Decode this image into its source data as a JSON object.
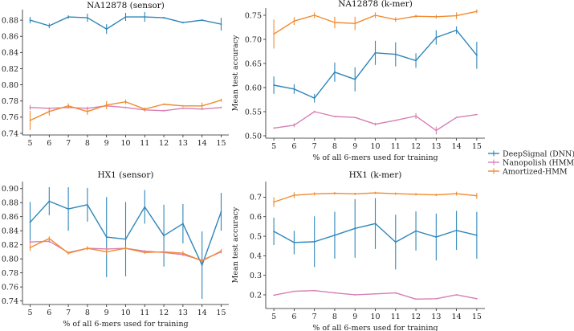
{
  "legend": {
    "entries": [
      {
        "name": "DeepSignal (DNN)",
        "color": "#2e86b9"
      },
      {
        "name": "Nanopolish (HMM)",
        "color": "#d67fb5"
      },
      {
        "name": "Amortized-HMM",
        "color": "#f28a2f"
      }
    ],
    "placement": "right-center"
  },
  "chart_data": [
    {
      "type": "line",
      "title": "NA12878 (sensor)",
      "xlabel": "",
      "ylabel": "Mean test accuracy",
      "x": [
        5,
        6,
        7,
        8,
        9,
        10,
        11,
        12,
        13,
        14,
        15
      ],
      "xlim": [
        4.6,
        15.4
      ],
      "ylim": [
        0.738,
        0.893
      ],
      "yticks": [
        0.74,
        0.76,
        0.78,
        0.8,
        0.82,
        0.84,
        0.86,
        0.88
      ],
      "yformat": 2,
      "series": [
        {
          "name": "DeepSignal (DNN)",
          "color": "#2e86b9",
          "values": [
            0.88,
            0.873,
            0.884,
            0.883,
            0.869,
            0.884,
            0.884,
            0.883,
            0.877,
            0.88,
            0.875
          ],
          "errors": [
            0.004,
            0.003,
            0.002,
            0.005,
            0.006,
            0.005,
            0.006,
            0.001,
            0.001,
            0.001,
            0.008
          ]
        },
        {
          "name": "Nanopolish (HMM)",
          "color": "#d67fb5",
          "values": [
            0.772,
            0.771,
            0.772,
            0.771,
            0.774,
            0.772,
            0.769,
            0.768,
            0.771,
            0.77,
            0.772
          ],
          "errors": [
            0.003,
            0.001,
            0.001,
            0.002,
            0.001,
            0.001,
            0.002,
            0.001,
            0.001,
            0.001,
            0.001
          ]
        },
        {
          "name": "Amortized-HMM",
          "color": "#f28a2f",
          "values": [
            0.756,
            0.767,
            0.774,
            0.767,
            0.775,
            0.779,
            0.77,
            0.776,
            0.774,
            0.774,
            0.781
          ],
          "errors": [
            0.012,
            0.005,
            0.003,
            0.004,
            0.005,
            0.003,
            0.002,
            0.001,
            0.001,
            0.004,
            0.002
          ]
        }
      ]
    },
    {
      "type": "line",
      "title": "NA12878 (k-mer)",
      "xlabel": "% of all 6-mers used for training",
      "ylabel": "Mean test accuracy",
      "x": [
        5,
        6,
        7,
        8,
        9,
        10,
        11,
        12,
        13,
        14,
        15
      ],
      "xlim": [
        4.6,
        15.4
      ],
      "ylim": [
        0.495,
        0.765
      ],
      "yticks": [
        0.5,
        0.55,
        0.6,
        0.65,
        0.7,
        0.75
      ],
      "yformat": 2,
      "series": [
        {
          "name": "DeepSignal (DNN)",
          "color": "#2e86b9",
          "values": [
            0.605,
            0.597,
            0.578,
            0.632,
            0.617,
            0.672,
            0.669,
            0.656,
            0.704,
            0.719,
            0.667
          ],
          "errors": [
            0.018,
            0.01,
            0.009,
            0.02,
            0.025,
            0.025,
            0.025,
            0.015,
            0.015,
            0.008,
            0.028
          ]
        },
        {
          "name": "Nanopolish (HMM)",
          "color": "#d67fb5",
          "values": [
            0.516,
            0.522,
            0.55,
            0.54,
            0.538,
            0.524,
            0.532,
            0.541,
            0.511,
            0.538,
            0.544
          ],
          "errors": [
            0.001,
            0.004,
            0.002,
            0.001,
            0.001,
            0.003,
            0.001,
            0.006,
            0.008,
            0.001,
            0.001
          ]
        },
        {
          "name": "Amortized-HMM",
          "color": "#f28a2f",
          "values": [
            0.711,
            0.738,
            0.75,
            0.735,
            0.733,
            0.75,
            0.741,
            0.748,
            0.747,
            0.749,
            0.758
          ],
          "errors": [
            0.03,
            0.008,
            0.006,
            0.012,
            0.014,
            0.006,
            0.005,
            0.003,
            0.004,
            0.007,
            0.004
          ]
        }
      ]
    },
    {
      "type": "line",
      "title": "HX1 (sensor)",
      "xlabel": "% of all 6-mers used for training",
      "ylabel": "Mean test accuracy",
      "x": [
        5,
        6,
        7,
        8,
        9,
        10,
        11,
        12,
        13,
        14,
        15
      ],
      "xlim": [
        4.6,
        15.4
      ],
      "ylim": [
        0.735,
        0.91
      ],
      "yticks": [
        0.74,
        0.76,
        0.78,
        0.8,
        0.82,
        0.84,
        0.86,
        0.88,
        0.9
      ],
      "yformat": 2,
      "series": [
        {
          "name": "DeepSignal (DNN)",
          "color": "#2e86b9",
          "values": [
            0.852,
            0.882,
            0.871,
            0.877,
            0.831,
            0.828,
            0.874,
            0.833,
            0.85,
            0.791,
            0.867
          ],
          "errors": [
            0.029,
            0.02,
            0.031,
            0.024,
            0.057,
            0.053,
            0.024,
            0.044,
            0.028,
            0.048,
            0.027
          ]
        },
        {
          "name": "Nanopolish (HMM)",
          "color": "#d67fb5",
          "values": [
            0.824,
            0.825,
            0.809,
            0.815,
            0.814,
            0.815,
            0.811,
            0.809,
            0.806,
            0.798,
            0.81
          ],
          "errors": [
            0.003,
            0.002,
            0.001,
            0.002,
            0.002,
            0.001,
            0.001,
            0.001,
            0.002,
            0.001,
            0.002
          ]
        },
        {
          "name": "Amortized-HMM",
          "color": "#f28a2f",
          "values": [
            0.816,
            0.829,
            0.808,
            0.815,
            0.81,
            0.815,
            0.809,
            0.81,
            0.808,
            0.797,
            0.811
          ],
          "errors": [
            0.005,
            0.003,
            0.002,
            0.003,
            0.004,
            0.002,
            0.002,
            0.002,
            0.003,
            0.002,
            0.003
          ]
        }
      ]
    },
    {
      "type": "line",
      "title": "HX1 (k-mer)",
      "xlabel": "% of all 6-mers used for training",
      "ylabel": "Mean test accuracy",
      "x": [
        5,
        6,
        7,
        8,
        9,
        10,
        11,
        12,
        13,
        14,
        15
      ],
      "xlim": [
        4.6,
        15.4
      ],
      "ylim": [
        0.13,
        0.78
      ],
      "yticks": [
        0.2,
        0.3,
        0.4,
        0.5,
        0.6,
        0.7
      ],
      "yformat": 1,
      "series": [
        {
          "name": "DeepSignal (DNN)",
          "color": "#2e86b9",
          "values": [
            0.525,
            0.468,
            0.472,
            0.505,
            0.54,
            0.565,
            0.47,
            0.527,
            0.496,
            0.53,
            0.505
          ],
          "errors": [
            0.07,
            0.06,
            0.13,
            0.12,
            0.15,
            0.13,
            0.14,
            0.1,
            0.12,
            0.1,
            0.12
          ]
        },
        {
          "name": "Nanopolish (HMM)",
          "color": "#d67fb5",
          "values": [
            0.198,
            0.218,
            0.222,
            0.21,
            0.2,
            0.205,
            0.21,
            0.178,
            0.18,
            0.2,
            0.18
          ],
          "errors": [
            0.002,
            0.002,
            0.002,
            0.002,
            0.002,
            0.002,
            0.002,
            0.002,
            0.002,
            0.002,
            0.002
          ]
        },
        {
          "name": "Amortized-HMM",
          "color": "#f28a2f",
          "values": [
            0.675,
            0.71,
            0.717,
            0.72,
            0.717,
            0.722,
            0.718,
            0.715,
            0.712,
            0.718,
            0.707
          ],
          "errors": [
            0.025,
            0.015,
            0.008,
            0.006,
            0.006,
            0.006,
            0.006,
            0.006,
            0.006,
            0.01,
            0.015
          ]
        }
      ]
    }
  ]
}
